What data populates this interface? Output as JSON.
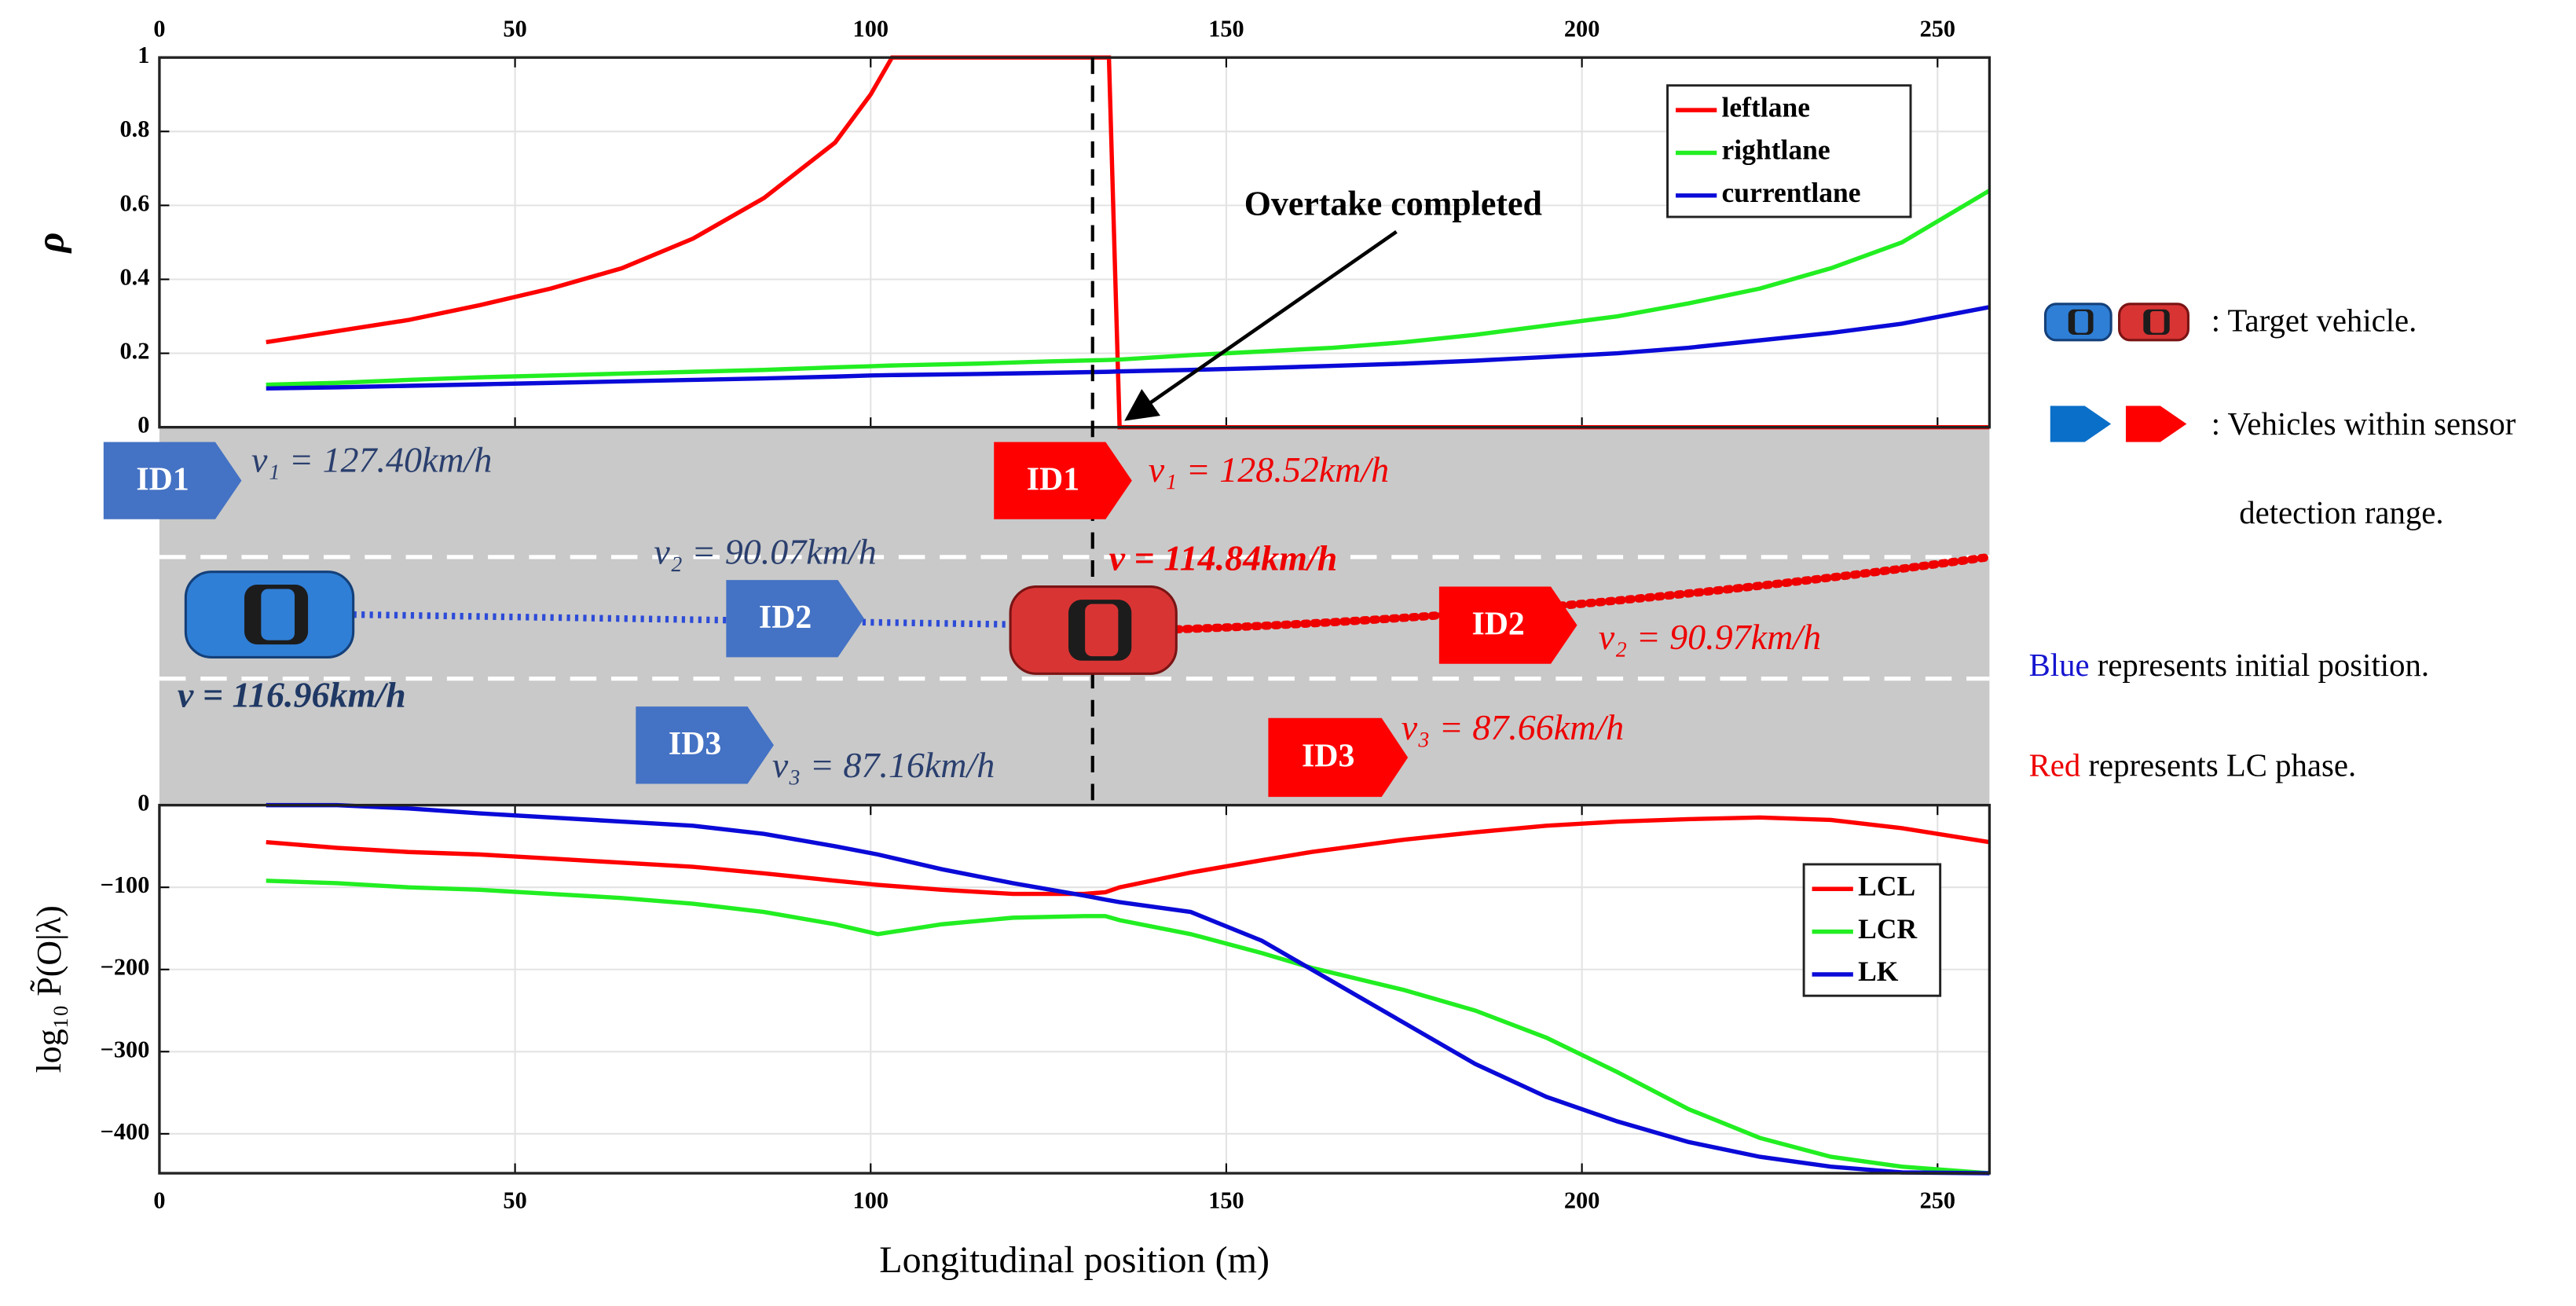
{
  "chart_data": [
    {
      "type": "line",
      "ylabel": "ρ",
      "annotation": "Overtake completed",
      "vline": 131.2,
      "xtick_side": "top",
      "grid": true,
      "legend": "upper right",
      "x": [
        15,
        25,
        35,
        45,
        55,
        65,
        75,
        85,
        95,
        100,
        103,
        115,
        125,
        133.5,
        135,
        145,
        155,
        165,
        175,
        185,
        195,
        205,
        215,
        225,
        235,
        245,
        257.3
      ],
      "series": [
        {
          "name": "leftlane",
          "color": "#ff0000",
          "values": [
            0.23,
            0.26,
            0.29,
            0.33,
            0.375,
            0.43,
            0.51,
            0.62,
            0.77,
            0.9,
            1,
            1,
            1,
            1,
            0,
            0,
            0,
            0,
            0,
            0,
            0,
            0,
            0,
            0,
            0,
            0,
            0
          ]
        },
        {
          "name": "rightlane",
          "color": "#22ee22",
          "values": [
            0.115,
            0.12,
            0.128,
            0.135,
            0.14,
            0.145,
            0.15,
            0.155,
            0.162,
            0.165,
            0.167,
            0.172,
            0.178,
            0.182,
            0.183,
            0.195,
            0.205,
            0.215,
            0.23,
            0.25,
            0.275,
            0.3,
            0.335,
            0.375,
            0.43,
            0.5,
            0.64
          ]
        },
        {
          "name": "currentlane",
          "color": "#0a0ad8",
          "values": [
            0.105,
            0.108,
            0.112,
            0.116,
            0.12,
            0.124,
            0.128,
            0.132,
            0.137,
            0.14,
            0.141,
            0.144,
            0.147,
            0.15,
            0.151,
            0.155,
            0.16,
            0.166,
            0.172,
            0.18,
            0.19,
            0.2,
            0.215,
            0.235,
            0.255,
            0.28,
            0.325
          ]
        }
      ],
      "xlim": [
        0,
        257.3
      ],
      "xticks": [
        0,
        50,
        100,
        150,
        200,
        250
      ],
      "ylim": [
        0,
        1
      ],
      "yticks": [
        0,
        0.2,
        0.4,
        0.6,
        0.8,
        1
      ]
    },
    {
      "type": "line",
      "ylabel": "log₁₀ P̃(O|λ)",
      "xlabel": "Longitudinal position (m)",
      "xtick_side": "bottom",
      "grid": true,
      "legend": "right",
      "x": [
        15,
        25,
        35,
        45,
        55,
        65,
        75,
        85,
        95,
        101,
        110,
        120,
        130,
        133,
        135,
        145,
        155,
        162,
        175,
        185,
        195,
        205,
        215,
        225,
        235,
        245,
        257.3
      ],
      "series": [
        {
          "name": "LCL",
          "color": "#ff0000",
          "values": [
            -45,
            -52,
            -57,
            -60,
            -65,
            -70,
            -75,
            -83,
            -92,
            -97,
            -103,
            -108,
            -108,
            -106,
            -100,
            -82,
            -67,
            -57,
            -42,
            -33,
            -25,
            -20,
            -17,
            -15,
            -18,
            -28,
            -45
          ]
        },
        {
          "name": "LCR",
          "color": "#22ee22",
          "values": [
            -92,
            -95,
            -100,
            -103,
            -108,
            -113,
            -120,
            -130,
            -145,
            -157,
            -145,
            -137,
            -135,
            -135,
            -140,
            -157,
            -180,
            -198,
            -225,
            -250,
            -283,
            -325,
            -370,
            -405,
            -428,
            -440,
            -448
          ]
        },
        {
          "name": "LK",
          "color": "#0a0ad8",
          "values": [
            0,
            0,
            -4,
            -10,
            -15,
            -20,
            -25,
            -35,
            -50,
            -60,
            -78,
            -95,
            -110,
            -115,
            -118,
            -130,
            -165,
            -200,
            -265,
            -315,
            -355,
            -385,
            -410,
            -428,
            -440,
            -447,
            -448
          ]
        }
      ],
      "xlim": [
        0,
        257.3
      ],
      "xticks": [
        0,
        50,
        100,
        150,
        200,
        250
      ],
      "ylim": [
        -448,
        0
      ],
      "yticks": [
        0,
        {
          "value": -100,
          "label": "−100"
        },
        {
          "value": -200,
          "label": "−200"
        },
        {
          "value": -300,
          "label": "−300"
        },
        {
          "value": -400,
          "label": "−400"
        }
      ]
    }
  ],
  "road": {
    "blue_tags": [
      "ID1",
      "ID2",
      "ID3"
    ],
    "blue_speeds": [
      "v₁ = 127.40km/h",
      "v₂ = 90.07km/h",
      "v₃ = 87.16km/h"
    ],
    "blue_ego_speed": "v = 116.96km/h",
    "red_tags": [
      "ID1",
      "ID2",
      "ID3"
    ],
    "red_speeds": [
      "v₁ = 128.52km/h",
      "v₂ = 90.97km/h",
      "v₃ = 87.66km/h"
    ],
    "red_ego_speed": "v = 114.84km/h"
  },
  "notes": {
    "target": ": Target vehicle.",
    "sensor": [
      ": Vehicles within sensor",
      "detection range."
    ],
    "blue_word": "Blue",
    "blue_rest": " represents initial position.",
    "red_word": "Red",
    "red_rest": " represents LC phase."
  }
}
